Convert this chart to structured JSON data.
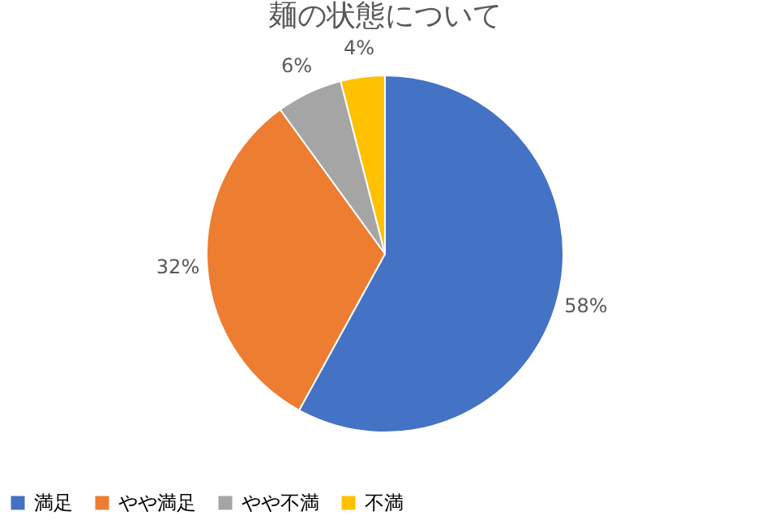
{
  "chart_data": {
    "type": "pie",
    "title": "麺の状態について",
    "categories": [
      "満足",
      "やや満足",
      "やや不満",
      "不満"
    ],
    "values": [
      58,
      32,
      6,
      4
    ],
    "colors": [
      "#4472c4",
      "#ed7d31",
      "#a5a5a5",
      "#ffc000"
    ],
    "value_labels": [
      "58%",
      "32%",
      "6%",
      "4%"
    ],
    "legend": "bottom"
  }
}
